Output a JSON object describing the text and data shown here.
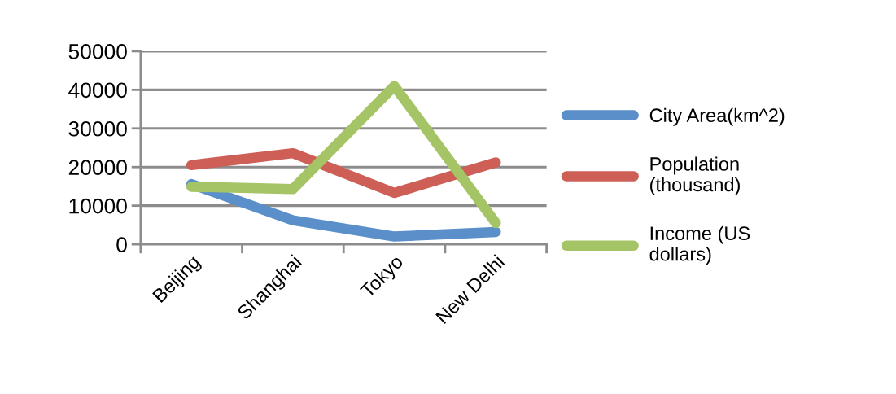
{
  "chart_data": {
    "type": "line",
    "categories": [
      "Beijing",
      "Shanghai",
      "Tokyo",
      "New Delhi"
    ],
    "series": [
      {
        "name": "City Area(km^2)",
        "color": "#5b8fc9",
        "values": [
          15600,
          6200,
          2000,
          3200
        ]
      },
      {
        "name": "Population\n(thousand)",
        "color": "#cd5f57",
        "values": [
          20500,
          23600,
          13300,
          21200
        ]
      },
      {
        "name": "Income (US\ndollars)",
        "color": "#a5c466",
        "values": [
          14900,
          14300,
          41000,
          5500
        ]
      }
    ],
    "ylim": [
      0,
      50000
    ],
    "yticks": [
      0,
      10000,
      20000,
      30000,
      40000,
      50000
    ],
    "grid": "y",
    "legend": "right",
    "line_style": "solid"
  }
}
